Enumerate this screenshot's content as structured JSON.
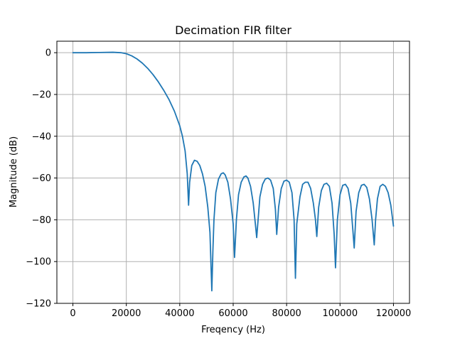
{
  "chart_data": {
    "type": "line",
    "title": "Decimation FIR filter",
    "xlabel": "Freqency (Hz)",
    "ylabel": "Magnitude (dB)",
    "xlim": [
      -6000,
      126000
    ],
    "ylim": [
      -120,
      5.5
    ],
    "xticks": [
      0,
      20000,
      40000,
      60000,
      80000,
      100000,
      120000
    ],
    "xtick_labels": [
      "0",
      "20000",
      "40000",
      "60000",
      "80000",
      "100000",
      "120000"
    ],
    "yticks": [
      0,
      -20,
      -40,
      -60,
      -80,
      -100,
      -120
    ],
    "ytick_labels": [
      "0",
      "−20",
      "−40",
      "−60",
      "−80",
      "−100",
      "−120"
    ],
    "grid": true,
    "colors": {
      "line": "#1f77b4",
      "grid": "#b0b0b0"
    },
    "series": [
      {
        "x": [
          0,
          5000,
          10000,
          15000,
          18000,
          20000,
          22000,
          24000,
          26000,
          28000,
          30000,
          32000,
          34000,
          36000,
          38000,
          40000,
          41000,
          42000,
          42800,
          43300,
          43700,
          44500,
          45500,
          46500,
          47500,
          48500,
          49500,
          50500,
          51300,
          52000,
          52400,
          52800,
          53500,
          54500,
          55500,
          56300,
          57000,
          58000,
          59000,
          60000,
          60500,
          60900,
          61200,
          62000,
          63000,
          64000,
          64800,
          65500,
          66500,
          67500,
          68300,
          68800,
          69200,
          70000,
          71000,
          72000,
          73000,
          74000,
          75000,
          75800,
          76300,
          77000,
          78000,
          79000,
          80000,
          81000,
          82000,
          82800,
          83300,
          83800,
          85000,
          86000,
          87000,
          88000,
          89000,
          90000,
          90800,
          91300,
          92000,
          93000,
          94000,
          95000,
          96000,
          97000,
          97800,
          98300,
          99000,
          100000,
          101000,
          102000,
          103000,
          104000,
          104800,
          105300,
          106000,
          107000,
          108000,
          109000,
          110000,
          111000,
          112000,
          112800,
          113300,
          114000,
          115000,
          116000,
          117000,
          118000,
          119000,
          120000
        ],
        "y": [
          0,
          0,
          0.1,
          0.2,
          0,
          -0.5,
          -1.5,
          -3,
          -5,
          -7.5,
          -10.5,
          -14,
          -18,
          -22.5,
          -28,
          -35,
          -40,
          -47,
          -58,
          -73,
          -62,
          -54,
          -51.5,
          -52,
          -54,
          -58,
          -64,
          -74,
          -86,
          -114,
          -95,
          -80,
          -67,
          -60.5,
          -58,
          -57.5,
          -58.5,
          -62,
          -70,
          -82,
          -98,
          -88,
          -80,
          -68,
          -62,
          -59.5,
          -59,
          -60,
          -64,
          -72,
          -82,
          -88.5,
          -82,
          -69,
          -63,
          -60.5,
          -60,
          -61,
          -65,
          -75,
          -87,
          -74,
          -65,
          -61.5,
          -61,
          -62,
          -67,
          -80,
          -108,
          -82,
          -69,
          -63,
          -62,
          -62,
          -65,
          -72,
          -80,
          -88,
          -74,
          -66,
          -63,
          -62.5,
          -64,
          -72,
          -87,
          -103,
          -80,
          -68,
          -63.5,
          -63,
          -65,
          -72,
          -85,
          -93.5,
          -76,
          -67,
          -63.5,
          -63,
          -64.5,
          -70,
          -80,
          -92,
          -80,
          -70,
          -64,
          -63,
          -64,
          -67,
          -73,
          -83
        ]
      }
    ]
  }
}
